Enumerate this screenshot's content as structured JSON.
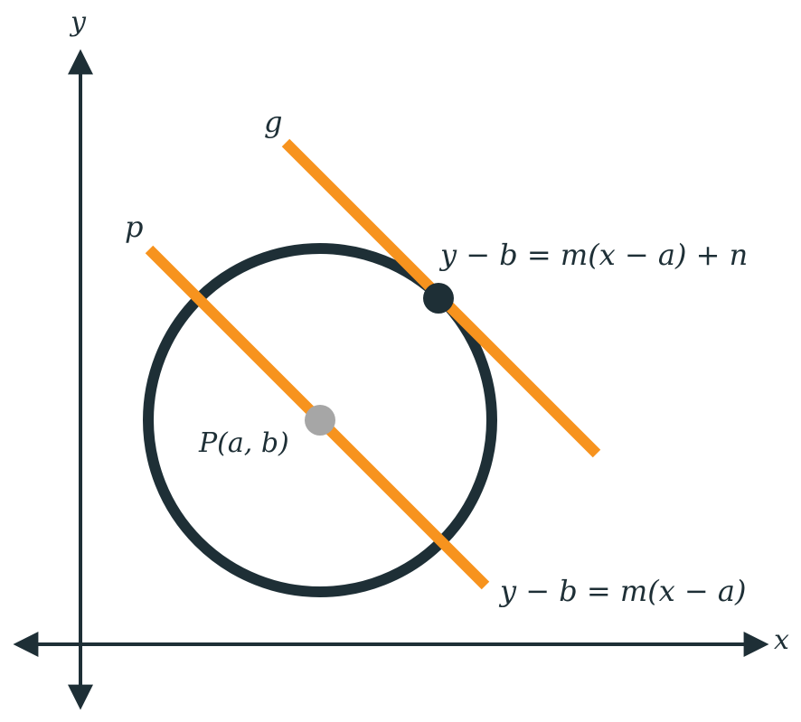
{
  "axes": {
    "x_label": "x",
    "y_label": "y"
  },
  "lines": {
    "p_label": "p",
    "g_label": "g",
    "p_equation": "y − b = m(x − a)",
    "g_equation": "y − b = m(x − a) + n"
  },
  "points": {
    "center_label": "P(a, b)"
  },
  "colors": {
    "axis": "#1e2f36",
    "circle": "#1e2f36",
    "line": "#f7931e",
    "center_point": "#a6a6a6",
    "touch_point": "#1e2f36"
  }
}
